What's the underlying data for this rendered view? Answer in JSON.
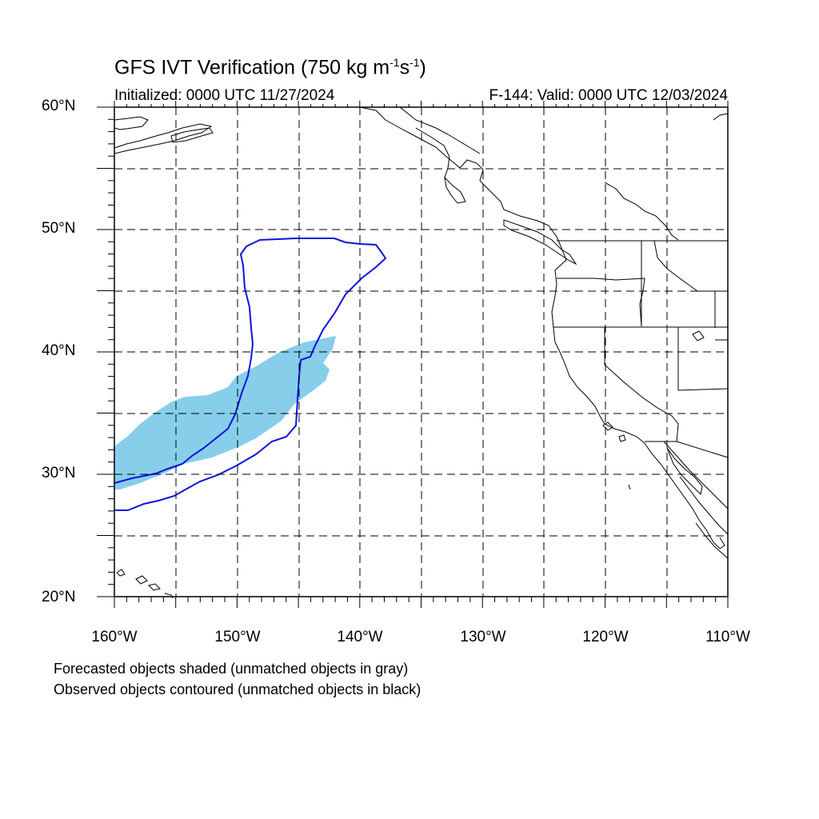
{
  "header": {
    "title_main": "GFS IVT Verification (750 kg m",
    "title_sup1": "-1",
    "title_mid": "s",
    "title_sup2": "-1",
    "title_end": ")",
    "initialized": "Initialized: 0000 UTC 11/27/2024",
    "valid": "F-144: Valid: 0000 UTC 12/03/2024"
  },
  "axes": {
    "lat_labels": [
      "60°N",
      "50°N",
      "40°N",
      "30°N",
      "20°N"
    ],
    "lon_labels": [
      "160°W",
      "150°W",
      "140°W",
      "130°W",
      "120°W",
      "110°W"
    ]
  },
  "map_extent": {
    "lon_min": -160,
    "lon_max": -110,
    "lat_min": 20,
    "lat_max": 60
  },
  "legend": {
    "line1": "Forecasted objects shaded (unmatched objects in gray)",
    "line2": "Observed objects contoured (unmatched objects in black)"
  },
  "colors": {
    "forecast_fill": "#87ceeb",
    "observed_contour": "#1010e0",
    "grid": "#000000",
    "coastline": "#000000"
  }
}
